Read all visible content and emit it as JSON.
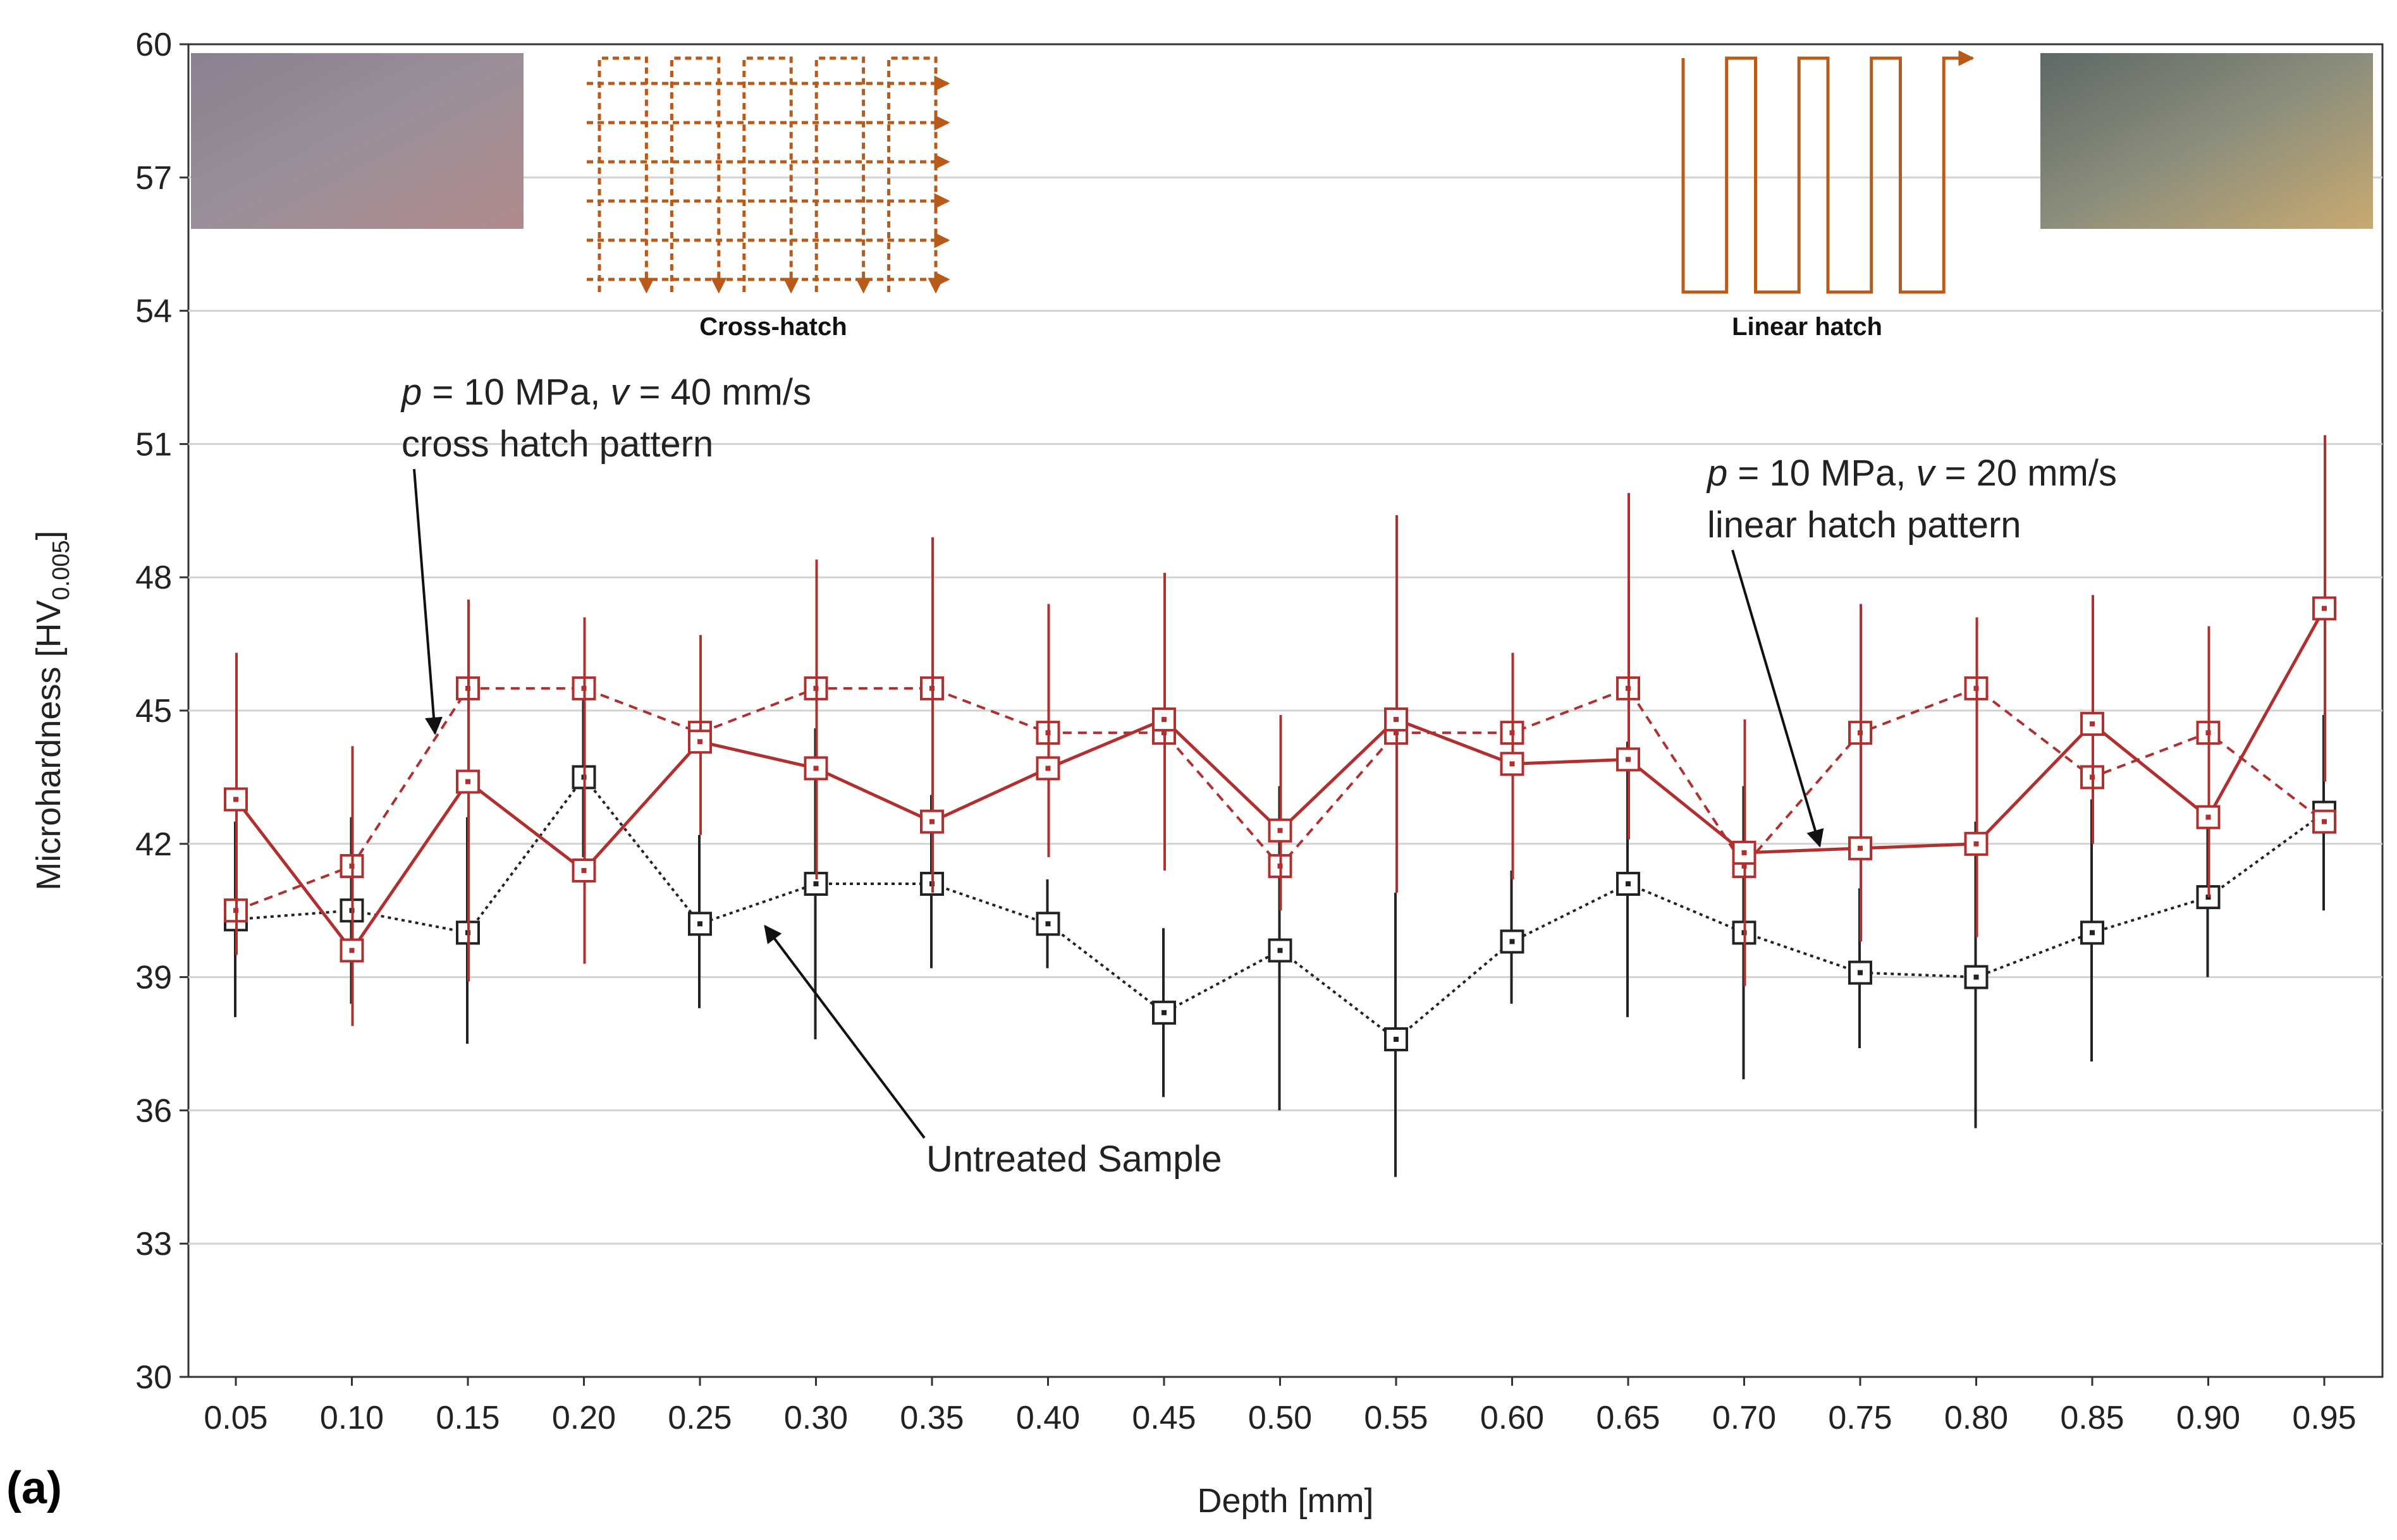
{
  "chart_data": {
    "type": "line",
    "xlabel": "Depth [mm]",
    "ylabel_main": "Microhardness [HV",
    "ylabel_sub": "0.005",
    "ylabel_end": "]",
    "ylim": [
      30,
      60
    ],
    "yticks": [
      "30",
      "33",
      "36",
      "39",
      "42",
      "45",
      "48",
      "51",
      "54",
      "57",
      "60"
    ],
    "categories": [
      "0.05",
      "0.10",
      "0.15",
      "0.20",
      "0.25",
      "0.30",
      "0.35",
      "0.40",
      "0.45",
      "0.50",
      "0.55",
      "0.60",
      "0.65",
      "0.70",
      "0.75",
      "0.80",
      "0.85",
      "0.90",
      "0.95"
    ],
    "grid": true,
    "series": [
      {
        "name": "p = 10 MPa, v = 40 mm/s cross hatch pattern",
        "color": "#b03030",
        "style": "dashed",
        "values": [
          40.5,
          41.5,
          45.5,
          45.5,
          44.5,
          45.5,
          45.5,
          44.5,
          44.5,
          41.5,
          44.5,
          44.5,
          45.5,
          41.5,
          44.5,
          45.5,
          43.5,
          44.5,
          42.5
        ]
      },
      {
        "name": "p = 10 MPa, v = 20 mm/s linear hatch pattern",
        "color": "#b03030",
        "style": "solid",
        "values": [
          43.0,
          39.6,
          43.4,
          41.4,
          44.3,
          43.7,
          42.5,
          43.7,
          44.8,
          42.3,
          44.8,
          43.8,
          43.9,
          41.8,
          41.9,
          42.0,
          44.7,
          42.6,
          47.3
        ],
        "err_low": [
          39.5,
          37.9,
          38.9,
          39.3,
          42.2,
          41.2,
          40.9,
          41.7,
          41.4,
          40.5,
          40.9,
          41.2,
          42.1,
          38.8,
          39.8,
          39.9,
          42.0,
          40.8,
          43.4
        ],
        "err_high": [
          46.3,
          44.2,
          47.5,
          47.1,
          46.7,
          48.4,
          48.9,
          47.4,
          48.1,
          44.9,
          49.4,
          46.3,
          49.9,
          44.8,
          47.4,
          47.1,
          47.6,
          46.9,
          51.2
        ]
      },
      {
        "name": "Untreated Sample",
        "color": "#222222",
        "style": "dotted",
        "values": [
          40.3,
          40.5,
          40.0,
          43.5,
          40.2,
          41.1,
          41.1,
          40.2,
          38.2,
          39.6,
          37.6,
          39.8,
          41.1,
          40.0,
          39.1,
          39.0,
          40.0,
          40.8,
          42.7
        ],
        "err_low": [
          38.1,
          38.4,
          37.5,
          41.7,
          38.3,
          37.6,
          39.2,
          39.2,
          36.3,
          36.0,
          34.5,
          38.4,
          38.1,
          36.7,
          37.4,
          35.6,
          37.1,
          39.0,
          40.5
        ],
        "err_high": [
          42.5,
          42.6,
          42.6,
          45.4,
          42.2,
          44.6,
          43.1,
          41.2,
          40.1,
          43.3,
          40.9,
          41.4,
          44.3,
          43.3,
          41.0,
          42.5,
          43.0,
          42.7,
          44.9
        ]
      }
    ],
    "annotations": [
      {
        "id": "cross",
        "line1_italic_p": "p",
        "line1_mid": " = 10 MPa",
        "line1_sep": ", ",
        "line1_italic_v": "v",
        "line1_end": " = 40 mm/s",
        "line2": "cross hatch pattern"
      },
      {
        "id": "linear",
        "line1_italic_p": "p",
        "line1_mid": " = 10 MPa",
        "line1_sep": ", ",
        "line1_italic_v": "v",
        "line1_end": " = 20 mm/s",
        "line2": "linear hatch pattern"
      },
      {
        "id": "untreated",
        "text": "Untreated Sample"
      }
    ],
    "insets": {
      "cross_label": "Cross-hatch",
      "linear_label": "Linear hatch",
      "pattern_color": "#b85a1a"
    },
    "panel_label": "(a)"
  }
}
